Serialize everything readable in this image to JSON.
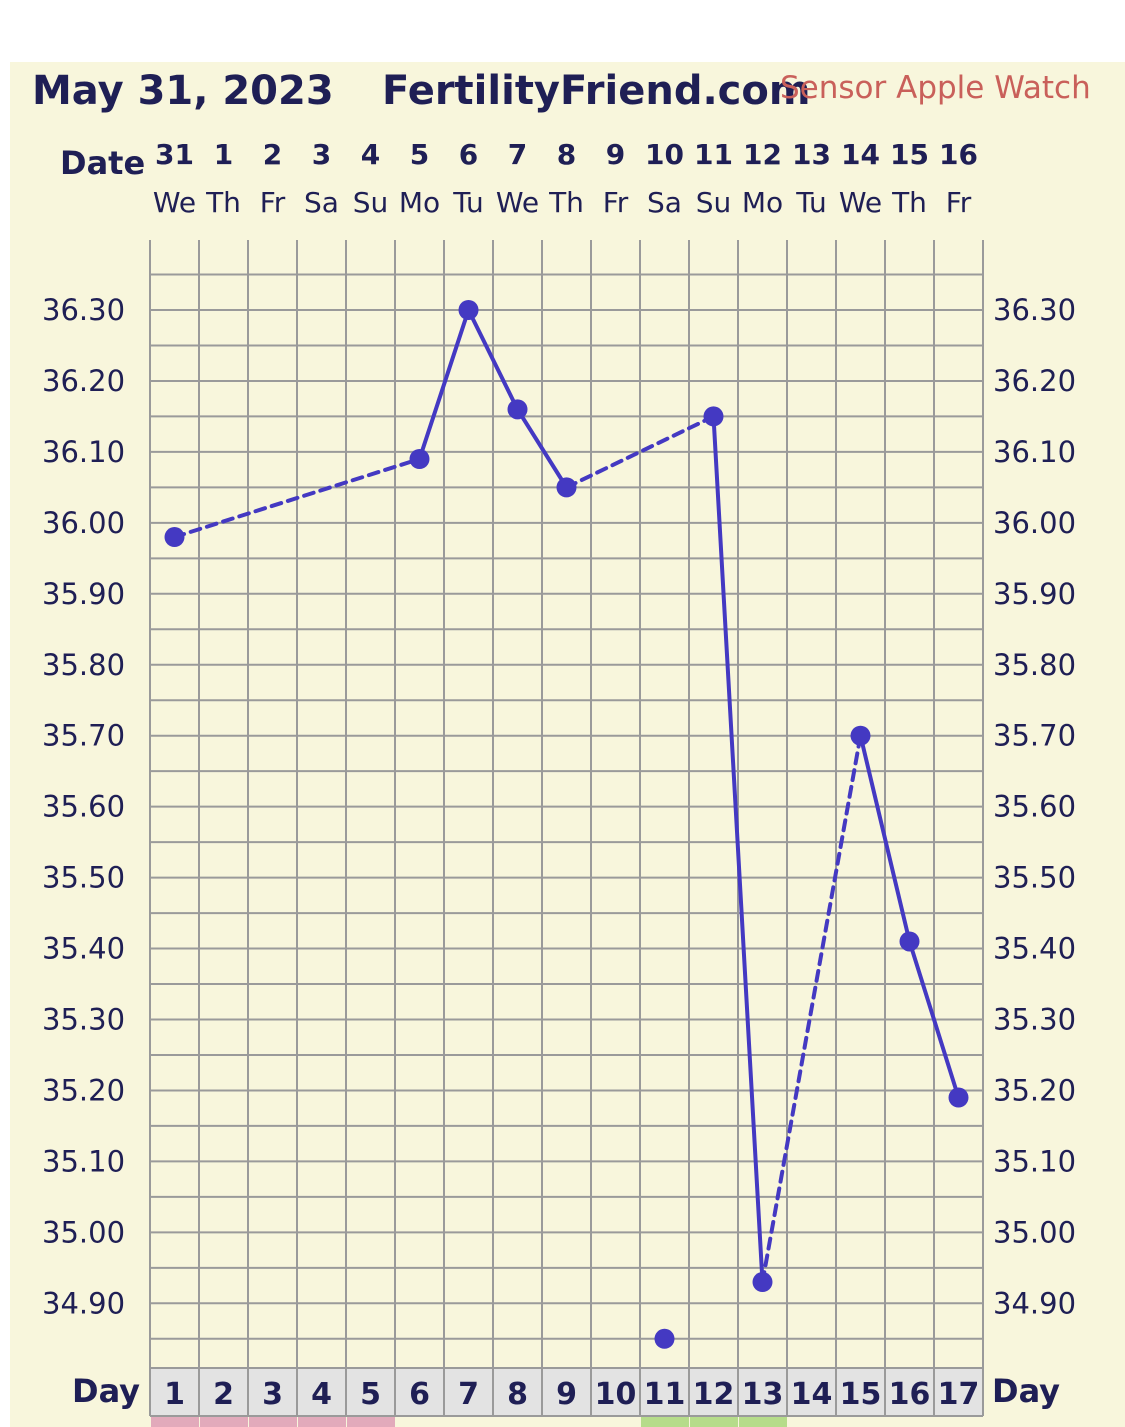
{
  "header": {
    "date": "May 31, 2023",
    "site": "FertilityFriend.com",
    "sensor": "Sensor Apple Watch"
  },
  "chart_data": {
    "type": "line",
    "date_label": "Date",
    "day_label": "Day",
    "dates": [
      "31",
      "1",
      "2",
      "3",
      "4",
      "5",
      "6",
      "7",
      "8",
      "9",
      "10",
      "11",
      "12",
      "13",
      "14",
      "15",
      "16"
    ],
    "weekdays": [
      "We",
      "Th",
      "Fr",
      "Sa",
      "Su",
      "Mo",
      "Tu",
      "We",
      "Th",
      "Fr",
      "Sa",
      "Su",
      "Mo",
      "Tu",
      "We",
      "Th",
      "Fr"
    ],
    "days": [
      "1",
      "2",
      "3",
      "4",
      "5",
      "6",
      "7",
      "8",
      "9",
      "10",
      "11",
      "12",
      "13",
      "14",
      "15",
      "16",
      "17"
    ],
    "yticks": [
      "36.30",
      "36.20",
      "36.10",
      "36.00",
      "35.90",
      "35.80",
      "35.70",
      "35.60",
      "35.50",
      "35.40",
      "35.30",
      "35.20",
      "35.10",
      "35.00",
      "34.90"
    ],
    "ylim": [
      34.82,
      36.39
    ],
    "points": [
      {
        "day": 1,
        "temp": 35.98
      },
      {
        "day": 6,
        "temp": 36.09
      },
      {
        "day": 7,
        "temp": 36.3
      },
      {
        "day": 8,
        "temp": 36.16
      },
      {
        "day": 9,
        "temp": 36.05
      },
      {
        "day": 11,
        "temp": 34.85
      },
      {
        "day": 12,
        "temp": 36.15
      },
      {
        "day": 13,
        "temp": 34.93
      },
      {
        "day": 15,
        "temp": 35.7
      },
      {
        "day": 16,
        "temp": 35.41
      },
      {
        "day": 17,
        "temp": 35.19
      }
    ],
    "segments": [
      {
        "from": 1,
        "to": 6,
        "style": "dashed"
      },
      {
        "from": 6,
        "to": 7,
        "style": "solid"
      },
      {
        "from": 7,
        "to": 8,
        "style": "solid"
      },
      {
        "from": 8,
        "to": 9,
        "style": "solid"
      },
      {
        "from": 9,
        "to": 12,
        "style": "dashed"
      },
      {
        "from": 12,
        "to": 13,
        "style": "solid"
      },
      {
        "from": 13,
        "to": 15,
        "style": "dashed"
      },
      {
        "from": 15,
        "to": 16,
        "style": "solid"
      },
      {
        "from": 16,
        "to": 17,
        "style": "solid"
      }
    ],
    "bottom_markers": [
      {
        "day": 1,
        "color": "#e2aabb"
      },
      {
        "day": 2,
        "color": "#e2aabb"
      },
      {
        "day": 3,
        "color": "#e2aabb"
      },
      {
        "day": 4,
        "color": "#e2aabb"
      },
      {
        "day": 5,
        "color": "#e2aabb"
      },
      {
        "day": 11,
        "color": "#b6dc8a"
      },
      {
        "day": 12,
        "color": "#b6dc8a"
      },
      {
        "day": 13,
        "color": "#b6dc8a"
      }
    ],
    "colors": {
      "line": "#4439c2",
      "grid": "#9a9a9a",
      "background": "#f8f6dc",
      "day_row": "#e3e3e3",
      "text": "#1f1f55"
    }
  }
}
